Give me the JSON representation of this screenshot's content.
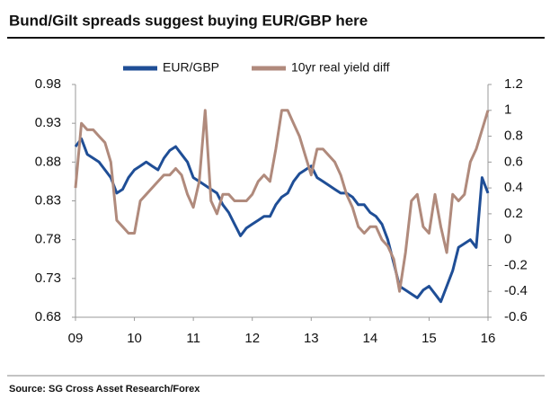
{
  "chart_data": {
    "type": "line",
    "title": "Bund/Gilt spreads suggest buying EUR/GBP here",
    "source": "Source: SG Cross Asset Research/Forex",
    "x": [
      2009.0,
      2009.1,
      2009.2,
      2009.3,
      2009.4,
      2009.5,
      2009.6,
      2009.7,
      2009.8,
      2009.9,
      2010.0,
      2010.1,
      2010.2,
      2010.3,
      2010.4,
      2010.5,
      2010.6,
      2010.7,
      2010.8,
      2010.9,
      2011.0,
      2011.1,
      2011.2,
      2011.3,
      2011.4,
      2011.5,
      2011.6,
      2011.7,
      2011.8,
      2011.9,
      2012.0,
      2012.1,
      2012.2,
      2012.3,
      2012.4,
      2012.5,
      2012.6,
      2012.7,
      2012.8,
      2012.9,
      2013.0,
      2013.1,
      2013.2,
      2013.3,
      2013.4,
      2013.5,
      2013.6,
      2013.7,
      2013.8,
      2013.9,
      2014.0,
      2014.1,
      2014.2,
      2014.3,
      2014.4,
      2014.5,
      2014.6,
      2014.7,
      2014.8,
      2014.9,
      2015.0,
      2015.1,
      2015.2,
      2015.3,
      2015.4,
      2015.5,
      2015.6,
      2015.7,
      2015.8,
      2015.9,
      2016.0
    ],
    "series": [
      {
        "name": "EUR/GBP",
        "color": "#1f4e96",
        "axis": "y",
        "values": [
          0.9,
          0.91,
          0.89,
          0.885,
          0.88,
          0.87,
          0.86,
          0.84,
          0.845,
          0.86,
          0.87,
          0.875,
          0.88,
          0.875,
          0.87,
          0.885,
          0.895,
          0.9,
          0.89,
          0.88,
          0.86,
          0.855,
          0.85,
          0.845,
          0.84,
          0.825,
          0.815,
          0.8,
          0.785,
          0.795,
          0.8,
          0.805,
          0.81,
          0.81,
          0.825,
          0.835,
          0.84,
          0.855,
          0.865,
          0.87,
          0.875,
          0.86,
          0.855,
          0.85,
          0.845,
          0.84,
          0.84,
          0.835,
          0.825,
          0.825,
          0.815,
          0.81,
          0.8,
          0.78,
          0.75,
          0.72,
          0.715,
          0.71,
          0.705,
          0.715,
          0.72,
          0.71,
          0.7,
          0.72,
          0.74,
          0.77,
          0.775,
          0.78,
          0.77,
          0.86,
          0.84
        ]
      },
      {
        "name": "10yr real yield diff",
        "color": "#b08a7c",
        "axis": "y2",
        "values": [
          0.4,
          0.9,
          0.85,
          0.85,
          0.8,
          0.75,
          0.6,
          0.15,
          0.1,
          0.05,
          0.05,
          0.3,
          0.35,
          0.4,
          0.45,
          0.5,
          0.5,
          0.55,
          0.5,
          0.35,
          0.25,
          0.45,
          1.0,
          0.3,
          0.2,
          0.35,
          0.35,
          0.3,
          0.3,
          0.3,
          0.35,
          0.45,
          0.5,
          0.45,
          0.7,
          1.0,
          1.0,
          0.9,
          0.8,
          0.65,
          0.5,
          0.7,
          0.7,
          0.65,
          0.6,
          0.5,
          0.35,
          0.25,
          0.1,
          0.05,
          0.1,
          0.1,
          0,
          -0.05,
          -0.15,
          -0.4,
          -0.1,
          0.3,
          0.35,
          0.1,
          0.05,
          0.35,
          0.1,
          -0.1,
          0.35,
          0.3,
          0.35,
          0.6,
          0.7,
          0.85,
          1.0
        ]
      }
    ],
    "xlim": [
      2009,
      2016
    ],
    "xticks": [
      {
        "value": 2009,
        "label": "09"
      },
      {
        "value": 2010,
        "label": "10"
      },
      {
        "value": 2011,
        "label": "11"
      },
      {
        "value": 2012,
        "label": "12"
      },
      {
        "value": 2013,
        "label": "13"
      },
      {
        "value": 2014,
        "label": "14"
      },
      {
        "value": 2015,
        "label": "15"
      },
      {
        "value": 2016,
        "label": "16"
      }
    ],
    "ylim": [
      0.68,
      0.98
    ],
    "yticks": [
      0.68,
      0.73,
      0.78,
      0.83,
      0.88,
      0.93,
      0.98
    ],
    "y2lim": [
      -0.6,
      1.2
    ],
    "y2ticks": [
      -0.6,
      -0.4,
      -0.2,
      0,
      0.2,
      0.4,
      0.6,
      0.8,
      1,
      1.2
    ],
    "legend": "top"
  }
}
